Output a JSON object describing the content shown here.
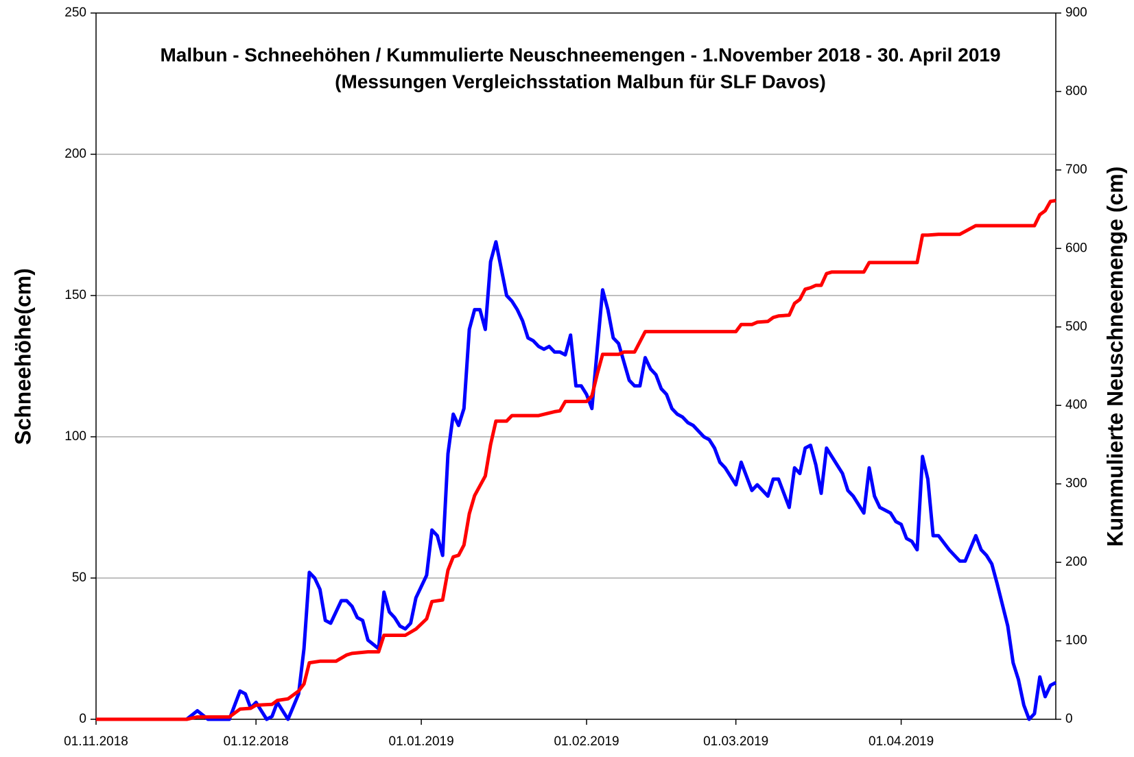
{
  "chart_data": {
    "type": "line",
    "title": "Malbun - Schneehöhen / Kummulierte Neuschneemengen - 1.November 2018 - 30. April 2019",
    "subtitle": "(Messungen Vergleichsstation Malbun für SLF Davos)",
    "y_label": "Schneehöhe(cm)",
    "y2_label": "Kummulierte Neuschneemenge (cm)",
    "xlim": [
      "2018-11-01",
      "2019-04-30"
    ],
    "xticks": [
      {
        "value": "2018-11-01",
        "label": "01.11.2018"
      },
      {
        "value": "2018-12-01",
        "label": "01.12.2018"
      },
      {
        "value": "2019-01-01",
        "label": "01.01.2019"
      },
      {
        "value": "2019-02-01",
        "label": "01.02.2019"
      },
      {
        "value": "2019-03-01",
        "label": "01.03.2019"
      },
      {
        "value": "2019-04-01",
        "label": "01.04.2019"
      }
    ],
    "ylim": [
      0,
      250
    ],
    "yticks": [
      0,
      50,
      100,
      150,
      200,
      250
    ],
    "y2lim": [
      0,
      900
    ],
    "y2ticks": [
      0,
      100,
      200,
      300,
      400,
      500,
      600,
      700,
      800,
      900
    ],
    "grid": true,
    "series": [
      {
        "color": "#0000ff",
        "axis": "y",
        "x": [
          "2018-11-01",
          "2018-11-18",
          "2018-11-20",
          "2018-11-22",
          "2018-11-26",
          "2018-11-28",
          "2018-11-29",
          "2018-11-30",
          "2018-12-01",
          "2018-12-03",
          "2018-12-04",
          "2018-12-05",
          "2018-12-07",
          "2018-12-09",
          "2018-12-10",
          "2018-12-11",
          "2018-12-12",
          "2018-12-13",
          "2018-12-14",
          "2018-12-15",
          "2018-12-17",
          "2018-12-18",
          "2018-12-19",
          "2018-12-20",
          "2018-12-21",
          "2018-12-22",
          "2018-12-24",
          "2018-12-25",
          "2018-12-26",
          "2018-12-27",
          "2018-12-28",
          "2018-12-29",
          "2018-12-30",
          "2018-12-31",
          "2019-01-02",
          "2019-01-03",
          "2019-01-04",
          "2019-01-05",
          "2019-01-06",
          "2019-01-07",
          "2019-01-08",
          "2019-01-09",
          "2019-01-10",
          "2019-01-11",
          "2019-01-12",
          "2019-01-13",
          "2019-01-14",
          "2019-01-15",
          "2019-01-17",
          "2019-01-18",
          "2019-01-19",
          "2019-01-20",
          "2019-01-21",
          "2019-01-22",
          "2019-01-23",
          "2019-01-24",
          "2019-01-25",
          "2019-01-26",
          "2019-01-27",
          "2019-01-28",
          "2019-01-29",
          "2019-01-30",
          "2019-01-31",
          "2019-02-01",
          "2019-02-02",
          "2019-02-04",
          "2019-02-05",
          "2019-02-06",
          "2019-02-07",
          "2019-02-09",
          "2019-02-10",
          "2019-02-11",
          "2019-02-12",
          "2019-02-13",
          "2019-02-14",
          "2019-02-15",
          "2019-02-16",
          "2019-02-17",
          "2019-02-18",
          "2019-02-19",
          "2019-02-20",
          "2019-02-21",
          "2019-02-23",
          "2019-02-24",
          "2019-02-25",
          "2019-02-26",
          "2019-02-27",
          "2019-03-01",
          "2019-03-02",
          "2019-03-04",
          "2019-03-05",
          "2019-03-07",
          "2019-03-08",
          "2019-03-09",
          "2019-03-11",
          "2019-03-12",
          "2019-03-13",
          "2019-03-14",
          "2019-03-15",
          "2019-03-16",
          "2019-03-17",
          "2019-03-18",
          "2019-03-21",
          "2019-03-22",
          "2019-03-23",
          "2019-03-25",
          "2019-03-26",
          "2019-03-27",
          "2019-03-28",
          "2019-03-30",
          "2019-03-31",
          "2019-04-01",
          "2019-04-02",
          "2019-04-03",
          "2019-04-04",
          "2019-04-05",
          "2019-04-06",
          "2019-04-07",
          "2019-04-08",
          "2019-04-10",
          "2019-04-12",
          "2019-04-13",
          "2019-04-15",
          "2019-04-16",
          "2019-04-17",
          "2019-04-18",
          "2019-04-19",
          "2019-04-21",
          "2019-04-22",
          "2019-04-23",
          "2019-04-24",
          "2019-04-25",
          "2019-04-26",
          "2019-04-27",
          "2019-04-28",
          "2019-04-29",
          "2019-04-30"
        ],
        "values": [
          0,
          0,
          3,
          0,
          0,
          10,
          9,
          4,
          6,
          0,
          1,
          6,
          0,
          9,
          25,
          52,
          50,
          46,
          35,
          34,
          42,
          42,
          40,
          36,
          35,
          28,
          25,
          45,
          38,
          36,
          33,
          32,
          34,
          43,
          51,
          67,
          65,
          58,
          94,
          108,
          104,
          110,
          138,
          145,
          145,
          138,
          162,
          169,
          150,
          148,
          145,
          141,
          135,
          134,
          132,
          131,
          132,
          130,
          130,
          129,
          136,
          118,
          118,
          115,
          110,
          152,
          145,
          135,
          133,
          120,
          118,
          118,
          128,
          124,
          122,
          117,
          115,
          110,
          108,
          107,
          105,
          104,
          100,
          99,
          96,
          91,
          89,
          83,
          91,
          81,
          83,
          79,
          85,
          85,
          75,
          89,
          87,
          96,
          97,
          90,
          80,
          96,
          87,
          81,
          79,
          73,
          89,
          79,
          75,
          73,
          70,
          69,
          64,
          63,
          60,
          93,
          85,
          65,
          65,
          60,
          56,
          56,
          65,
          60,
          58,
          55,
          48,
          33,
          20,
          14,
          5,
          0,
          2,
          15,
          8,
          12,
          13
        ]
      },
      {
        "color": "#ff0000",
        "axis": "y2",
        "x": [
          "2018-11-01",
          "2018-11-18",
          "2018-11-20",
          "2018-11-26",
          "2018-11-28",
          "2018-11-30",
          "2018-12-01",
          "2018-12-04",
          "2018-12-05",
          "2018-12-07",
          "2018-12-09",
          "2018-12-10",
          "2018-12-11",
          "2018-12-13",
          "2018-12-16",
          "2018-12-18",
          "2018-12-19",
          "2018-12-22",
          "2018-12-24",
          "2018-12-25",
          "2018-12-29",
          "2018-12-31",
          "2019-01-02",
          "2019-01-03",
          "2019-01-05",
          "2019-01-06",
          "2019-01-07",
          "2019-01-08",
          "2019-01-09",
          "2019-01-10",
          "2019-01-11",
          "2019-01-13",
          "2019-01-14",
          "2019-01-15",
          "2019-01-17",
          "2019-01-18",
          "2019-01-23",
          "2019-01-26",
          "2019-01-27",
          "2019-01-28",
          "2019-02-01",
          "2019-02-02",
          "2019-02-03",
          "2019-02-04",
          "2019-02-07",
          "2019-02-08",
          "2019-02-10",
          "2019-02-12",
          "2019-03-01",
          "2019-03-02",
          "2019-03-04",
          "2019-03-05",
          "2019-03-07",
          "2019-03-08",
          "2019-03-09",
          "2019-03-11",
          "2019-03-12",
          "2019-03-13",
          "2019-03-14",
          "2019-03-15",
          "2019-03-16",
          "2019-03-17",
          "2019-03-18",
          "2019-03-19",
          "2019-03-25",
          "2019-03-26",
          "2019-04-04",
          "2019-04-05",
          "2019-04-06",
          "2019-04-08",
          "2019-04-12",
          "2019-04-15",
          "2019-04-26",
          "2019-04-27",
          "2019-04-28",
          "2019-04-29",
          "2019-04-30"
        ],
        "values": [
          0,
          0,
          3,
          3,
          13,
          14,
          18,
          19,
          24,
          26,
          36,
          45,
          72,
          74,
          74,
          82,
          84,
          86,
          86,
          107,
          107,
          115,
          128,
          150,
          152,
          190,
          207,
          209,
          222,
          262,
          285,
          310,
          350,
          380,
          380,
          387,
          387,
          392,
          393,
          405,
          405,
          412,
          440,
          465,
          465,
          468,
          468,
          494,
          494,
          503,
          503,
          506,
          507,
          512,
          514,
          515,
          530,
          535,
          548,
          550,
          553,
          553,
          568,
          570,
          570,
          582,
          582,
          617,
          617,
          618,
          618,
          629,
          629,
          643,
          648,
          660,
          661
        ]
      }
    ]
  }
}
